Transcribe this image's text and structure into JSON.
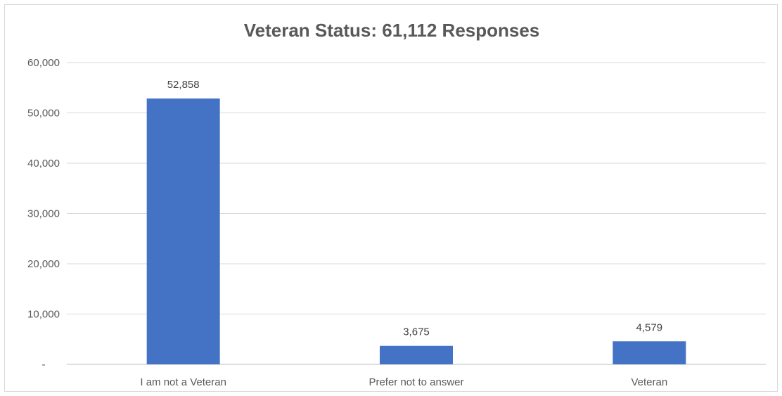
{
  "chart_data": {
    "type": "bar",
    "title": "Veteran Status: 61,112 Responses",
    "xlabel": "",
    "ylabel": "",
    "categories": [
      "I am not a Veteran",
      "Prefer not to answer",
      "Veteran"
    ],
    "values": [
      52858,
      3675,
      4579
    ],
    "data_labels": [
      "52,858",
      "3,675",
      "4,579"
    ],
    "ylim": [
      0,
      60000
    ],
    "yticks": [
      0,
      10000,
      20000,
      30000,
      40000,
      50000,
      60000
    ],
    "ytick_labels": [
      "-",
      "10,000",
      "20,000",
      "30,000",
      "40,000",
      "50,000",
      "60,000"
    ],
    "grid": true,
    "legend": "none",
    "bar_color": "#4472c4"
  }
}
